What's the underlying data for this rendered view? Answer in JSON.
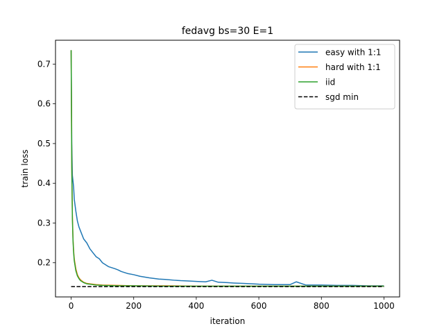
{
  "chart_data": {
    "type": "line",
    "title": "fedavg bs=30 E=1",
    "xlabel": "iteration",
    "ylabel": "train loss",
    "xlim": [
      -50,
      1050
    ],
    "ylim": [
      0.114,
      0.76
    ],
    "xticks": [
      0,
      200,
      400,
      600,
      800,
      1000
    ],
    "yticks": [
      0.2,
      0.3,
      0.4,
      0.5,
      0.6,
      0.7
    ],
    "grid": false,
    "legend_position": "top-right",
    "series": [
      {
        "name": "easy with 1:1",
        "color": "#1f77b4",
        "style": "solid",
        "x": [
          0,
          2,
          4,
          6,
          8,
          10,
          15,
          20,
          25,
          30,
          40,
          50,
          60,
          70,
          80,
          90,
          100,
          110,
          120,
          140,
          150,
          160,
          180,
          200,
          220,
          250,
          280,
          300,
          330,
          350,
          380,
          400,
          430,
          450,
          470,
          500,
          520,
          550,
          580,
          600,
          650,
          700,
          720,
          750,
          800,
          850,
          900,
          950,
          1000
        ],
        "y": [
          0.735,
          0.5,
          0.42,
          0.405,
          0.39,
          0.36,
          0.33,
          0.305,
          0.29,
          0.28,
          0.26,
          0.25,
          0.235,
          0.225,
          0.215,
          0.21,
          0.2,
          0.195,
          0.19,
          0.185,
          0.182,
          0.178,
          0.173,
          0.17,
          0.166,
          0.162,
          0.159,
          0.158,
          0.156,
          0.155,
          0.154,
          0.153,
          0.152,
          0.156,
          0.151,
          0.15,
          0.149,
          0.148,
          0.147,
          0.146,
          0.145,
          0.145,
          0.152,
          0.144,
          0.144,
          0.143,
          0.143,
          0.142,
          0.142
        ]
      },
      {
        "name": "hard with 1:1",
        "color": "#ff7f0e",
        "style": "solid",
        "x": [
          0,
          2,
          4,
          6,
          8,
          10,
          15,
          20,
          25,
          30,
          40,
          50,
          60,
          80,
          100,
          150,
          200,
          300,
          400,
          500,
          600,
          700,
          800,
          900,
          1000
        ],
        "y": [
          0.735,
          0.45,
          0.32,
          0.26,
          0.23,
          0.21,
          0.185,
          0.17,
          0.162,
          0.157,
          0.151,
          0.148,
          0.147,
          0.145,
          0.144,
          0.143,
          0.142,
          0.142,
          0.141,
          0.141,
          0.141,
          0.141,
          0.141,
          0.141,
          0.141
        ]
      },
      {
        "name": "iid",
        "color": "#2ca02c",
        "style": "solid",
        "x": [
          0,
          2,
          4,
          6,
          8,
          10,
          15,
          20,
          25,
          30,
          40,
          50,
          60,
          80,
          100,
          150,
          200,
          300,
          400,
          500,
          600,
          700,
          800,
          900,
          1000
        ],
        "y": [
          0.735,
          0.44,
          0.31,
          0.255,
          0.225,
          0.205,
          0.18,
          0.167,
          0.16,
          0.155,
          0.15,
          0.147,
          0.146,
          0.144,
          0.143,
          0.142,
          0.142,
          0.141,
          0.141,
          0.141,
          0.141,
          0.141,
          0.141,
          0.141,
          0.141
        ]
      },
      {
        "name": "sgd min",
        "color": "#000000",
        "style": "dashed",
        "x": [
          0,
          1000
        ],
        "y": [
          0.14,
          0.14
        ]
      }
    ]
  }
}
